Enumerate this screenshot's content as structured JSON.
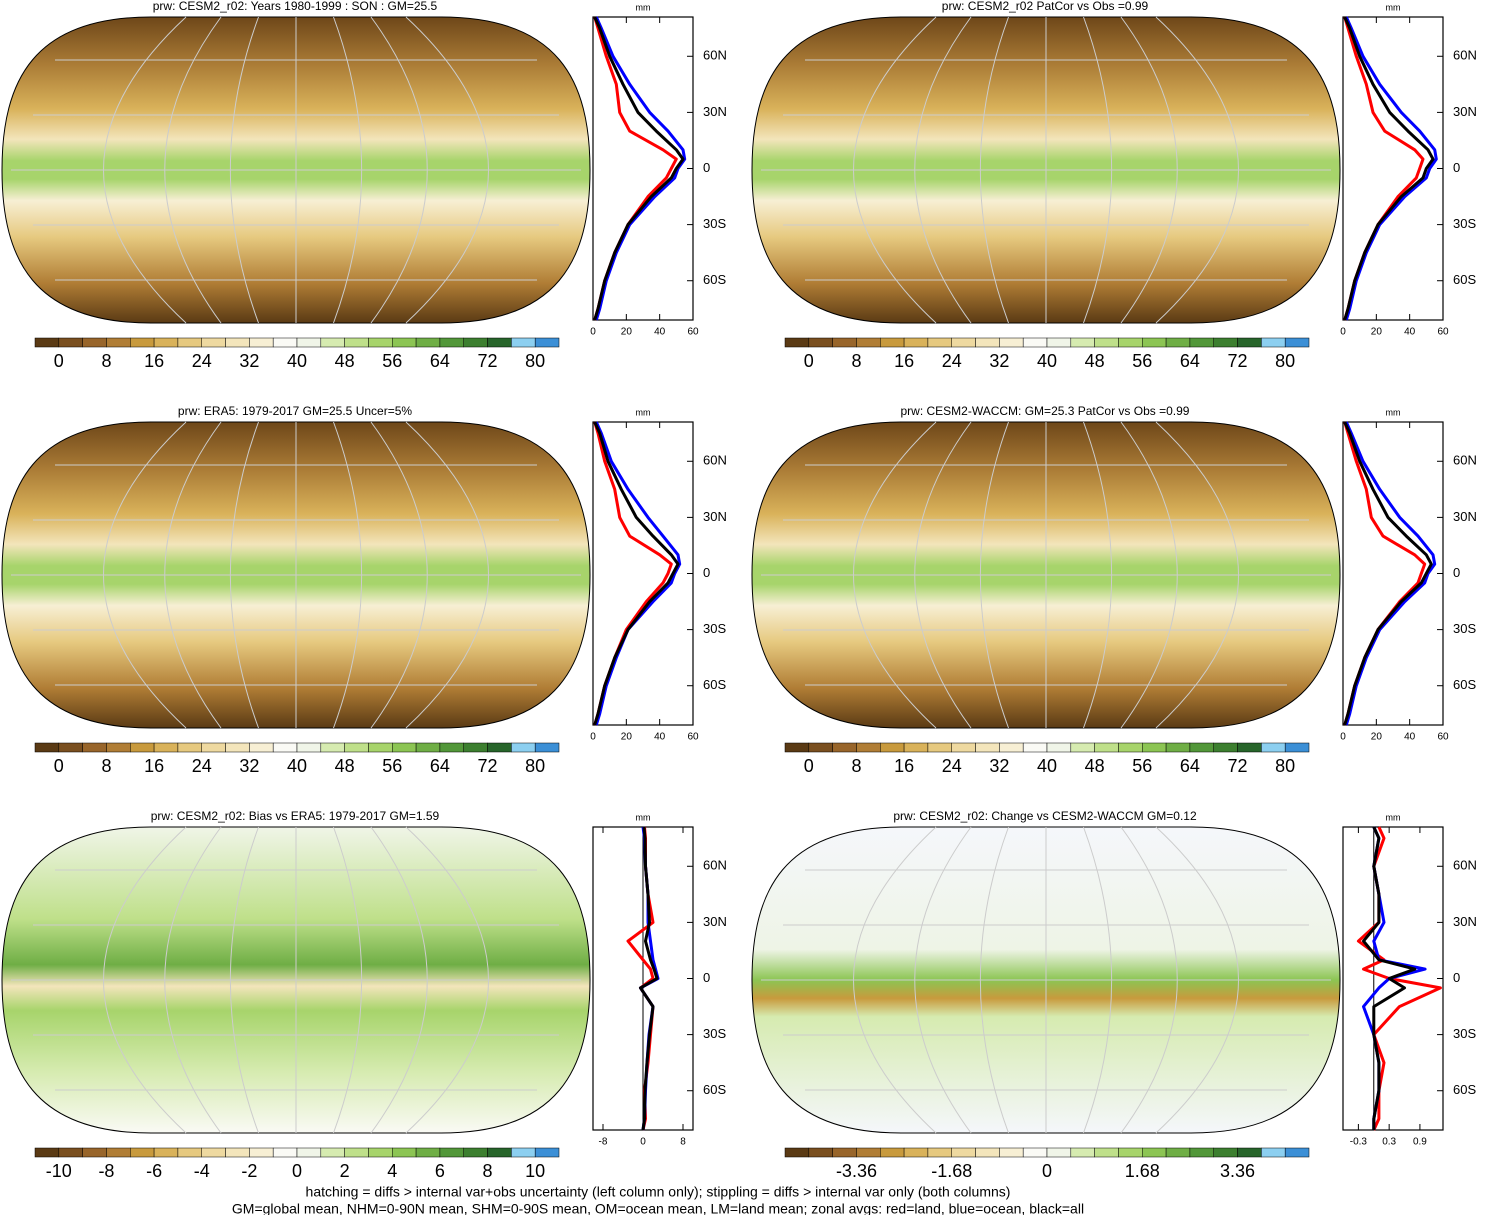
{
  "colorbar_colors": [
    "#5a3a14",
    "#7a4f1f",
    "#98652a",
    "#b07d35",
    "#c89a3d",
    "#d9b25a",
    "#e6c97f",
    "#eed9a0",
    "#f3e5bb",
    "#f7efd4",
    "#fafaf5",
    "#f0f5e8",
    "#d6ebb0",
    "#bfe08a",
    "#a7d46b",
    "#8cc553",
    "#6fae45",
    "#529739",
    "#3c7f2f",
    "#27652a",
    "#8ccff0",
    "#3b8fd6"
  ],
  "panels": [
    {
      "title": "prw: CESM2_r02: Years 1980-1999 : SON : GM=25.5",
      "map": "mean",
      "colorbar": {
        "labels": [
          0,
          8,
          16,
          24,
          32,
          40,
          48,
          56,
          64,
          72,
          80
        ]
      },
      "zonal": {
        "unit": "mm",
        "xlim": [
          0,
          60
        ],
        "xticks": [
          0,
          20,
          40,
          60
        ],
        "ylim": [
          -81,
          81
        ],
        "yticks": [
          {
            "value": 60,
            "label": "60N"
          },
          {
            "value": 30,
            "label": "30N"
          },
          0,
          {
            "value": -30,
            "label": "30S"
          },
          {
            "value": -60,
            "label": "60S"
          }
        ],
        "lat": [
          -81,
          -75,
          -60,
          -45,
          -30,
          -15,
          -5,
          0,
          5,
          10,
          20,
          30,
          45,
          60,
          75,
          81
        ],
        "series": [
          {
            "color": "#ff0000",
            "values": [
              1,
              3,
              7,
              13,
              21,
              33,
              44,
              47,
              50,
              42,
              22,
              16,
              14,
              8,
              3,
              1
            ]
          },
          {
            "color": "#0000ff",
            "values": [
              2,
              4,
              8,
              14,
              22,
              37,
              49,
              51,
              55,
              54,
              45,
              34,
              22,
              12,
              5,
              2
            ]
          },
          {
            "color": "#000000",
            "values": [
              1,
              3,
              7,
              13,
              21,
              35,
              47,
              50,
              54,
              50,
              38,
              27,
              18,
              10,
              4,
              1
            ]
          }
        ]
      }
    },
    {
      "title": "prw: CESM2_r02 PatCor vs Obs =0.99",
      "map": "mean",
      "colorbar": {
        "labels": [
          0,
          8,
          16,
          24,
          32,
          40,
          48,
          56,
          64,
          72,
          80
        ]
      },
      "zonal": {
        "unit": "mm",
        "xlim": [
          0,
          60
        ],
        "xticks": [
          0,
          20,
          40,
          60
        ],
        "ylim": [
          -81,
          81
        ],
        "yticks": [
          {
            "value": 60,
            "label": "60N"
          },
          {
            "value": 30,
            "label": "30N"
          },
          0,
          {
            "value": -30,
            "label": "30S"
          },
          {
            "value": -60,
            "label": "60S"
          }
        ],
        "lat": [
          -81,
          -75,
          -60,
          -45,
          -30,
          -15,
          -5,
          0,
          5,
          10,
          20,
          30,
          45,
          60,
          75,
          81
        ],
        "series": [
          {
            "color": "#ff0000",
            "values": [
              1,
              3,
              7,
              13,
              21,
              33,
              44,
              46,
              48,
              43,
              25,
              18,
              14,
              8,
              3,
              1
            ]
          },
          {
            "color": "#0000ff",
            "values": [
              2,
              4,
              8,
              14,
              22,
              37,
              50,
              52,
              56,
              55,
              46,
              35,
              22,
              12,
              5,
              2
            ]
          },
          {
            "color": "#000000",
            "values": [
              1,
              3,
              7,
              13,
              21,
              35,
              48,
              50,
              54,
              51,
              39,
              28,
              18,
              10,
              4,
              1
            ]
          }
        ]
      }
    },
    {
      "title": "prw: ERA5: 1979-2017 GM=25.5 Uncer=5%",
      "map": "mean",
      "colorbar": {
        "labels": [
          0,
          8,
          16,
          24,
          32,
          40,
          48,
          56,
          64,
          72,
          80
        ]
      },
      "zonal": {
        "unit": "mm",
        "xlim": [
          0,
          60
        ],
        "xticks": [
          0,
          20,
          40,
          60
        ],
        "ylim": [
          -81,
          81
        ],
        "yticks": [
          {
            "value": 60,
            "label": "60N"
          },
          {
            "value": 30,
            "label": "30N"
          },
          0,
          {
            "value": -30,
            "label": "30S"
          },
          {
            "value": -60,
            "label": "60S"
          }
        ],
        "lat": [
          -81,
          -75,
          -60,
          -45,
          -30,
          -15,
          -5,
          0,
          5,
          10,
          20,
          30,
          45,
          60,
          75,
          81
        ],
        "series": [
          {
            "color": "#ff0000",
            "values": [
              1,
              3,
              7,
              13,
              20,
              32,
              42,
              45,
              47,
              40,
              22,
              16,
              13,
              7,
              3,
              1
            ]
          },
          {
            "color": "#0000ff",
            "values": [
              2,
              4,
              8,
              14,
              21,
              36,
              47,
              49,
              52,
              51,
              42,
              33,
              21,
              11,
              5,
              2
            ]
          },
          {
            "color": "#000000",
            "values": [
              1,
              3,
              7,
              13,
              21,
              34,
              45,
              48,
              51,
              47,
              36,
              26,
              17,
              9,
              4,
              1
            ]
          }
        ]
      }
    },
    {
      "title": "prw: CESM2-WACCM: GM=25.3 PatCor vs Obs =0.99",
      "map": "mean",
      "colorbar": {
        "labels": [
          0,
          8,
          16,
          24,
          32,
          40,
          48,
          56,
          64,
          72,
          80
        ]
      },
      "zonal": {
        "unit": "mm",
        "xlim": [
          0,
          60
        ],
        "xticks": [
          0,
          20,
          40,
          60
        ],
        "ylim": [
          -81,
          81
        ],
        "yticks": [
          {
            "value": 60,
            "label": "60N"
          },
          {
            "value": 30,
            "label": "30N"
          },
          0,
          {
            "value": -30,
            "label": "30S"
          },
          {
            "value": -60,
            "label": "60S"
          }
        ],
        "lat": [
          -81,
          -75,
          -60,
          -45,
          -30,
          -15,
          -5,
          0,
          5,
          10,
          20,
          30,
          45,
          60,
          75,
          81
        ],
        "series": [
          {
            "color": "#ff0000",
            "values": [
              1,
              3,
              7,
              13,
              21,
              34,
              45,
              47,
              49,
              43,
              24,
              17,
              14,
              8,
              3,
              1
            ]
          },
          {
            "color": "#0000ff",
            "values": [
              2,
              4,
              8,
              14,
              22,
              37,
              49,
              51,
              55,
              54,
              45,
              34,
              22,
              12,
              5,
              2
            ]
          },
          {
            "color": "#000000",
            "values": [
              1,
              3,
              7,
              13,
              21,
              35,
              47,
              50,
              53,
              50,
              38,
              27,
              18,
              10,
              4,
              1
            ]
          }
        ]
      }
    },
    {
      "title": "prw: CESM2_r02: Bias vs ERA5: 1979-2017  GM=1.59",
      "map": "bias",
      "colorbar": {
        "labels": [
          -10,
          -8,
          -6,
          -4,
          -2,
          0,
          2,
          4,
          6,
          8,
          10
        ]
      },
      "zonal": {
        "unit": "mm",
        "xlim": [
          -10,
          10
        ],
        "xticks": [
          -8,
          0,
          8
        ],
        "ylim": [
          -81,
          81
        ],
        "yticks": [
          {
            "value": 60,
            "label": "60N"
          },
          {
            "value": 30,
            "label": "30N"
          },
          0,
          {
            "value": -30,
            "label": "30S"
          },
          {
            "value": -60,
            "label": "60S"
          }
        ],
        "lat": [
          -81,
          -75,
          -60,
          -45,
          -30,
          -15,
          -5,
          0,
          5,
          10,
          20,
          30,
          45,
          60,
          75,
          81
        ],
        "series": [
          {
            "color": "#ff0000",
            "values": [
              0,
              0.5,
              0.3,
              1,
              1.5,
              2,
              -0.5,
              2,
              1.5,
              0,
              -3,
              2,
              1,
              0.5,
              0.5,
              0.3
            ]
          },
          {
            "color": "#0000ff",
            "values": [
              0,
              0.3,
              0.5,
              0.8,
              1.2,
              2,
              -0.5,
              3,
              2.5,
              2,
              1.5,
              1,
              1,
              0.5,
              0.3,
              0
            ]
          },
          {
            "color": "#000000",
            "values": [
              0,
              0.3,
              0.4,
              0.8,
              1.3,
              2,
              -0.5,
              2.8,
              2.2,
              1.5,
              0.5,
              1.3,
              1,
              0.5,
              0.4,
              0.2
            ]
          }
        ]
      }
    },
    {
      "title": "prw: CESM2_r02: Change vs CESM2-WACCM GM=0.12",
      "map": "change",
      "colorbar": {
        "labels": [
          -3.36,
          -1.68,
          0,
          1.68,
          3.36
        ]
      },
      "zonal": {
        "unit": "mm",
        "xlim": [
          -0.6,
          1.35
        ],
        "xticks": [
          -0.3,
          0.3,
          0.9
        ],
        "ylim": [
          -81,
          81
        ],
        "yticks": [
          {
            "value": 60,
            "label": "60N"
          },
          {
            "value": 30,
            "label": "30N"
          },
          0,
          {
            "value": -30,
            "label": "30S"
          },
          {
            "value": -60,
            "label": "60S"
          }
        ],
        "lat": [
          -81,
          -75,
          -60,
          -45,
          -30,
          -15,
          -5,
          0,
          5,
          10,
          20,
          30,
          45,
          60,
          75,
          81
        ],
        "series": [
          {
            "color": "#ff0000",
            "values": [
              0,
              0.1,
              0.1,
              0.2,
              0,
              0.5,
              1.3,
              0.3,
              -0.2,
              0.2,
              -0.3,
              0.1,
              0.1,
              0,
              0.2,
              0.1
            ]
          },
          {
            "color": "#0000ff",
            "values": [
              0,
              0,
              0.1,
              0.1,
              0,
              -0.2,
              0.1,
              0.3,
              1.0,
              0.1,
              0,
              0.2,
              0.1,
              0,
              0.1,
              0
            ]
          },
          {
            "color": "#000000",
            "values": [
              0,
              0,
              0.1,
              0.1,
              0,
              0,
              0.6,
              0.3,
              0.8,
              0.1,
              -0.2,
              0.1,
              0.1,
              0,
              0.1,
              0
            ]
          }
        ]
      }
    }
  ],
  "notes": [
    "hatching = diffs > internal var+obs uncertainty (left column only); stippling = diffs > internal var only (both columns)",
    "GM=global mean, NHM=0-90N mean, SHM=0-90S mean, OM=ocean mean, LM=land mean; zonal avgs: red=land, blue=ocean, black=all"
  ]
}
